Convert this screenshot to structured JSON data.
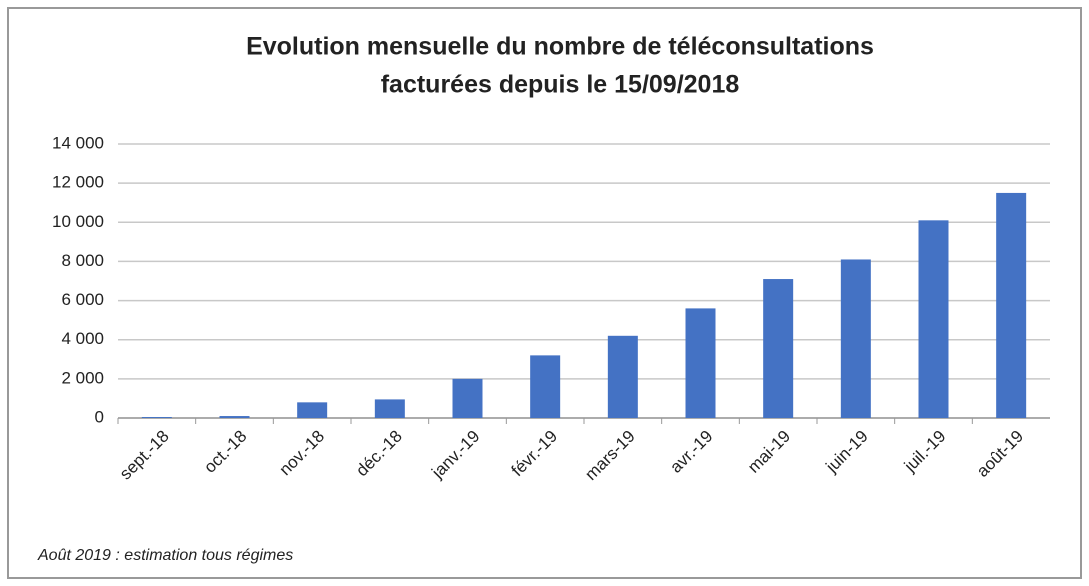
{
  "chart_data": {
    "type": "bar",
    "title": [
      "Evolution mensuelle du nombre de téléconsultations",
      "facturées depuis le 15/09/2018"
    ],
    "categories": [
      "sept.-18",
      "oct.-18",
      "nov.-18",
      "déc.-18",
      "janv.-19",
      "févr.-19",
      "mars-19",
      "avr.-19",
      "mai-19",
      "juin-19",
      "juil.-19",
      "août-19"
    ],
    "values": [
      50,
      100,
      800,
      950,
      2000,
      3200,
      4200,
      5600,
      7100,
      8100,
      10100,
      11500
    ],
    "color": "#4472c4",
    "ylim": [
      0,
      14000
    ],
    "yticks": [
      0,
      {
        "value": 2000,
        "label": "2 000"
      },
      {
        "value": 4000,
        "label": "4 000"
      },
      {
        "value": 6000,
        "label": "6 000"
      },
      {
        "value": 8000,
        "label": "8 000"
      },
      {
        "value": 10000,
        "label": "10 000"
      },
      {
        "value": 12000,
        "label": "12 000"
      },
      {
        "value": 14000,
        "label": "14 000"
      }
    ],
    "grid": true,
    "note": "Août 2019 : estimation tous régimes"
  }
}
